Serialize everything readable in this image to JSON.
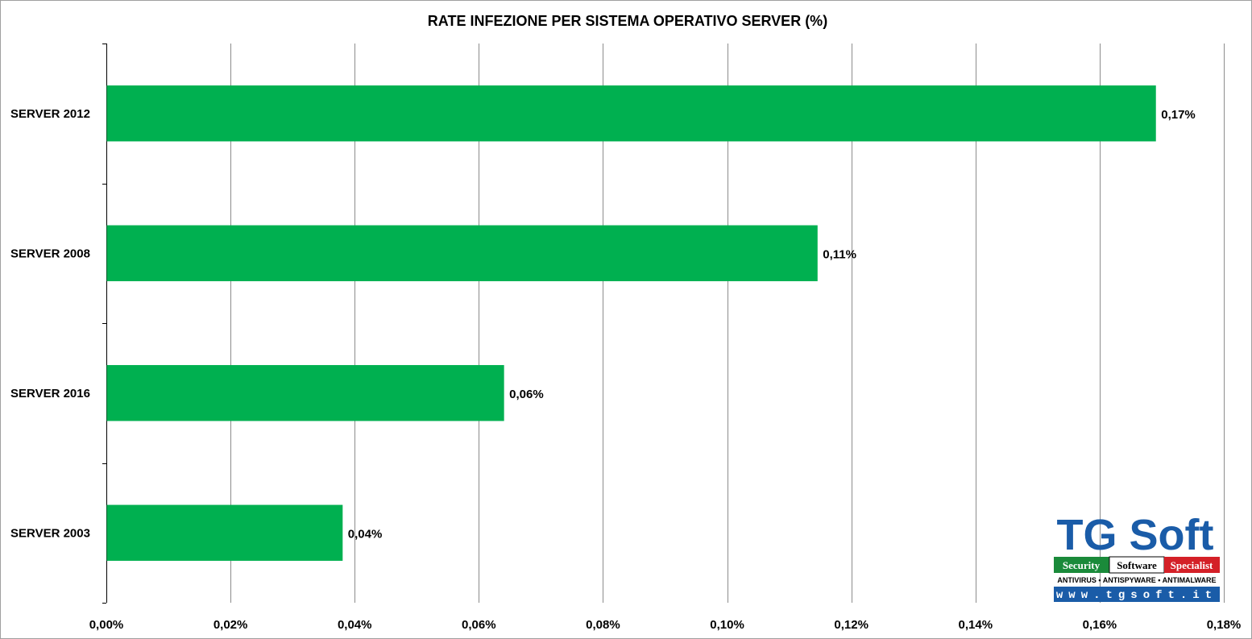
{
  "chart_data": {
    "type": "bar",
    "orientation": "horizontal",
    "title": "RATE  INFEZIONE  PER SISTEMA  OPERATIVO SERVER (%)",
    "categories": [
      "SERVER 2012",
      "SERVER 2008",
      "SERVER 2016",
      "SERVER 2003"
    ],
    "values": [
      0.169,
      0.1145,
      0.064,
      0.038
    ],
    "data_labels": [
      "0,17%",
      "0,11%",
      "0,06%",
      "0,04%"
    ],
    "xlim": [
      0,
      0.18
    ],
    "x_ticks": [
      0,
      0.02,
      0.04,
      0.06,
      0.08,
      0.1,
      0.12,
      0.14,
      0.16,
      0.18
    ],
    "x_tick_labels": [
      "0,00%",
      "0,02%",
      "0,04%",
      "0,06%",
      "0,08%",
      "0,10%",
      "0,12%",
      "0,14%",
      "0,16%",
      "0,18%"
    ],
    "grid": "vertical",
    "bar_color": "#00b050",
    "legend": "none"
  },
  "logo": {
    "brand": "TG Soft",
    "band": [
      "Security",
      "Software",
      "Specialist"
    ],
    "tagline": "ANTIVIRUS • ANTISPYWARE • ANTIMALWARE",
    "url": "www.tgsoft.it",
    "colors": {
      "blue": "#1a5ca8",
      "green": "#1a8a3a",
      "red": "#d42027",
      "white": "#ffffff"
    }
  }
}
